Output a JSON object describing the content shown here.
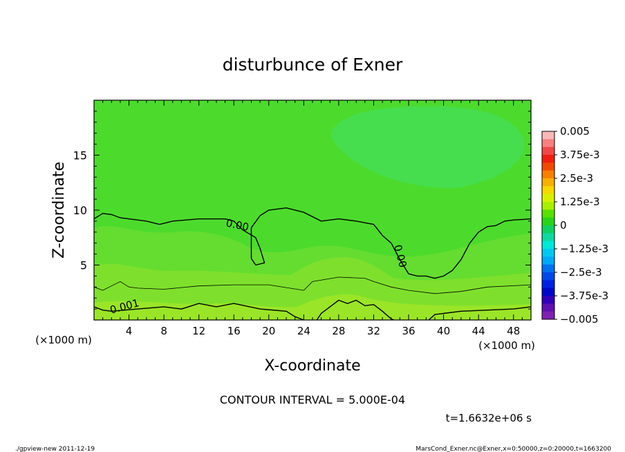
{
  "chart_data": {
    "type": "heatmap",
    "title": "disturbunce of Exner",
    "xlabel": "X-coordinate",
    "ylabel": "Z-coordinate",
    "x_unit": "(×1000 m)",
    "z_unit": "(×1000 m)",
    "xlim": [
      0,
      50
    ],
    "ylim": [
      0,
      20
    ],
    "x_ticks": [
      4,
      8,
      12,
      16,
      20,
      24,
      28,
      32,
      36,
      40,
      44,
      48
    ],
    "y_ticks": [
      5,
      10,
      15
    ],
    "contour_interval": "CONTOUR INTERVAL = 5.000E-04",
    "time_label": "t=1.6632e+06 s",
    "contour_labels": [
      {
        "text": "0.00",
        "x": 16.4,
        "y": 8.6,
        "angle": 12
      },
      {
        "text": "0.00",
        "x": 35.0,
        "y": 5.8,
        "angle": 75
      },
      {
        "text": "0.001",
        "x": 3.5,
        "y": 1.2,
        "angle": -15
      }
    ],
    "contours": [
      {
        "level": "0",
        "points": [
          [
            0,
            9.2
          ],
          [
            1,
            9.7
          ],
          [
            2,
            9.6
          ],
          [
            3,
            9.3
          ],
          [
            4,
            9.2
          ],
          [
            6,
            9.0
          ],
          [
            7.5,
            8.7
          ],
          [
            9,
            9.0
          ],
          [
            12,
            9.2
          ],
          [
            15,
            9.2
          ],
          [
            16,
            9.0
          ],
          [
            17,
            8.2
          ],
          [
            18.5,
            7.5
          ],
          [
            19,
            6.5
          ],
          [
            19.5,
            5.2
          ],
          [
            18.5,
            5.0
          ],
          [
            18,
            5.6
          ],
          [
            18,
            8.4
          ],
          [
            19,
            9.5
          ],
          [
            20,
            10.0
          ],
          [
            22,
            10.2
          ],
          [
            24,
            9.8
          ],
          [
            26,
            9.0
          ],
          [
            28,
            9.2
          ],
          [
            30,
            9.0
          ],
          [
            32,
            8.7
          ],
          [
            33,
            7.7
          ],
          [
            34,
            7.0
          ],
          [
            35,
            5.5
          ],
          [
            36,
            4.2
          ],
          [
            37,
            4.0
          ],
          [
            38,
            4.0
          ],
          [
            39,
            3.8
          ],
          [
            40,
            4.0
          ],
          [
            41,
            4.5
          ],
          [
            42,
            5.5
          ],
          [
            43,
            7.0
          ],
          [
            44,
            8.0
          ],
          [
            45,
            8.5
          ],
          [
            46,
            8.6
          ],
          [
            47,
            9.0
          ],
          [
            48,
            9.1
          ],
          [
            50,
            9.2
          ]
        ]
      },
      {
        "level": "-0.0005",
        "points": [
          [
            0,
            3.0
          ],
          [
            1,
            2.7
          ],
          [
            2,
            3.1
          ],
          [
            3,
            3.5
          ],
          [
            4,
            3.0
          ],
          [
            5,
            2.9
          ],
          [
            8,
            2.8
          ],
          [
            12,
            3.1
          ],
          [
            16,
            3.2
          ],
          [
            20,
            3.2
          ],
          [
            24,
            2.7
          ],
          [
            25,
            3.5
          ],
          [
            28,
            3.9
          ],
          [
            31,
            3.8
          ],
          [
            32,
            3.5
          ],
          [
            34,
            3.0
          ],
          [
            36,
            2.7
          ],
          [
            39,
            2.4
          ],
          [
            42,
            2.6
          ],
          [
            45,
            3.0
          ],
          [
            50,
            3.2
          ]
        ]
      },
      {
        "level": "0.001",
        "points": [
          [
            0,
            1.2
          ],
          [
            1,
            0.9
          ],
          [
            2,
            0.8
          ],
          [
            5,
            1.0
          ],
          [
            8,
            1.2
          ],
          [
            10,
            1.0
          ],
          [
            12,
            1.5
          ],
          [
            14,
            1.2
          ],
          [
            16,
            1.5
          ],
          [
            19,
            1.0
          ],
          [
            22,
            0.8
          ],
          [
            23,
            0.3
          ],
          [
            24,
            0
          ]
        ]
      },
      {
        "level": "0.001b",
        "points": [
          [
            25.5,
            0
          ],
          [
            26,
            0.6
          ],
          [
            28,
            1.8
          ],
          [
            29,
            1.5
          ],
          [
            30,
            1.8
          ],
          [
            31,
            1.3
          ],
          [
            32,
            1.4
          ],
          [
            33,
            0.8
          ],
          [
            34,
            0.1
          ],
          [
            34.3,
            0
          ]
        ]
      },
      {
        "level": "0.001c",
        "points": [
          [
            38.3,
            0
          ],
          [
            39,
            0.5
          ],
          [
            40,
            0.6
          ],
          [
            42,
            0.8
          ],
          [
            45,
            0.9
          ],
          [
            48,
            1.0
          ],
          [
            50,
            1.2
          ]
        ]
      }
    ],
    "colorbar": {
      "labels": [
        "0.005",
        "3.75e-3",
        "2.5e-3",
        "1.25e-3",
        "0",
        "−1.25e-3",
        "−2.5e-3",
        "−3.75e-3",
        "−0.005"
      ],
      "colors": [
        "#f8b8b8",
        "#f88080",
        "#f04848",
        "#f01e10",
        "#f04a00",
        "#f88000",
        "#f8b000",
        "#f8d800",
        "#d8f000",
        "#a8f000",
        "#58e000",
        "#28d418",
        "#10d060",
        "#10d8a0",
        "#00e8d8",
        "#00c8f0",
        "#00a8f8",
        "#0070f0",
        "#0048e8",
        "#0020e0",
        "#0008c8",
        "#3000b8",
        "#6010b0",
        "#8020b0"
      ]
    },
    "regions": [
      {
        "name": "background-field",
        "color": "#4cdb2c"
      },
      {
        "name": "upper-right-low-field",
        "color": "#46de4e"
      },
      {
        "name": "band-mid",
        "color": "#64dd30"
      },
      {
        "name": "band-lower",
        "color": "#7ee02c"
      },
      {
        "name": "band-bottom",
        "color": "#9ae528"
      }
    ]
  },
  "footer": {
    "left": "./gpview-new   2011-12-19",
    "right": "MarsCond_Exner.nc@Exner,x=0:50000,z=0:20000,t=1663200"
  }
}
